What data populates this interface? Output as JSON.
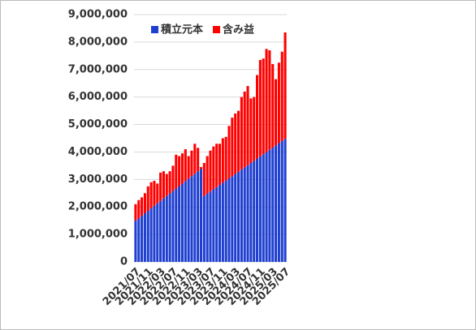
{
  "chart_data": {
    "type": "stacked_bar",
    "categories": [
      "2021/07",
      null,
      null,
      null,
      "2021/11",
      null,
      null,
      null,
      "2022/03",
      null,
      null,
      null,
      "2022/07",
      null,
      null,
      null,
      "2022/11",
      null,
      null,
      null,
      "2023/03",
      null,
      null,
      null,
      "2023/07",
      null,
      null,
      null,
      "2023/11",
      null,
      null,
      null,
      "2024/03",
      null,
      null,
      null,
      "2024/07",
      null,
      null,
      null,
      "2024/11",
      null,
      null,
      null,
      "2025/03",
      null,
      null,
      null,
      "2025/07"
    ],
    "series": [
      {
        "name": "積立元本",
        "color": "#1f3fd0",
        "values": [
          1500000,
          1590000,
          1680000,
          1770000,
          1860000,
          1950000,
          2040000,
          2130000,
          2220000,
          2310000,
          2400000,
          2490000,
          2580000,
          2670000,
          2760000,
          2850000,
          2940000,
          3030000,
          3120000,
          3210000,
          3300000,
          3390000,
          2400000,
          2480000,
          2560000,
          2640000,
          2720000,
          2800000,
          2880000,
          2960000,
          3040000,
          3120000,
          3200000,
          3280000,
          3360000,
          3440000,
          3520000,
          3600000,
          3680000,
          3760000,
          3840000,
          3920000,
          4000000,
          4080000,
          4160000,
          4240000,
          4320000,
          4400000,
          4480000
        ]
      },
      {
        "name": "含み益",
        "color": "#ff0000",
        "values": [
          600000,
          660000,
          670000,
          730000,
          890000,
          950000,
          910000,
          720000,
          1030000,
          990000,
          800000,
          810000,
          920000,
          1230000,
          1090000,
          1100000,
          1160000,
          820000,
          930000,
          1090000,
          850000,
          60000,
          1200000,
          1370000,
          1490000,
          1560000,
          1580000,
          1500000,
          1620000,
          1590000,
          1910000,
          2130000,
          2200000,
          2220000,
          2640000,
          2760000,
          2880000,
          2350000,
          2320000,
          3040000,
          3510000,
          3480000,
          3750000,
          3620000,
          3040000,
          2410000,
          2930000,
          3250000,
          3870000
        ]
      }
    ],
    "ylim": [
      0,
      9000000
    ],
    "yticks": [
      0,
      {
        "value": 1000000,
        "label": "1,000,000"
      },
      {
        "value": 2000000,
        "label": "2,000,000"
      },
      {
        "value": 3000000,
        "label": "3,000,000"
      },
      {
        "value": 4000000,
        "label": "4,000,000"
      },
      {
        "value": 5000000,
        "label": "5,000,000"
      },
      {
        "value": 6000000,
        "label": "6,000,000"
      },
      {
        "value": 7000000,
        "label": "7,000,000"
      },
      {
        "value": 8000000,
        "label": "8,000,000"
      },
      {
        "value": 9000000,
        "label": "9,000,000"
      }
    ],
    "grid": true,
    "legend": "top"
  }
}
